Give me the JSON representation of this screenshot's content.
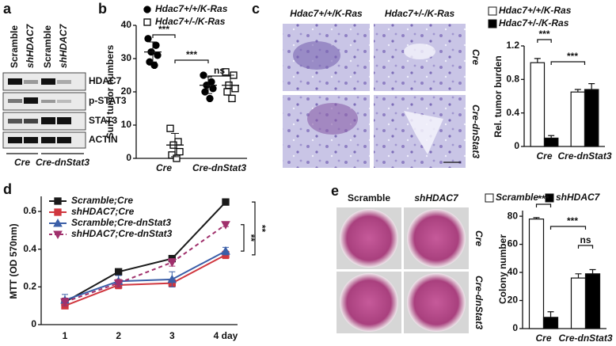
{
  "figure": {
    "panel_labels": [
      "a",
      "b",
      "c",
      "d",
      "e"
    ],
    "blot": {
      "columns": [
        "Scramble",
        "shHDAC7",
        "Scramble",
        "shHDAC7"
      ],
      "rows": [
        "HDAC7",
        "p-STAT3",
        "STAT3",
        "ACTIN"
      ],
      "groups": [
        "Cre",
        "Cre-dnStat3"
      ]
    },
    "histology": {
      "columns": [
        "Hdac7+/+/K-Ras",
        "Hdac7+/-/K-Ras"
      ],
      "rows": [
        "Cre",
        "Cre-dnStat3"
      ]
    },
    "plates": {
      "columns": [
        "Scramble",
        "shHDAC7"
      ],
      "rows": [
        "Cre",
        "Cre-dnStat3"
      ]
    }
  },
  "chart_data": [
    {
      "type": "strip",
      "ylabel": "Surf. tumor numbers",
      "categories": [
        "Cre",
        "Cre-dnStat3"
      ],
      "ylim": [
        0,
        40
      ],
      "yticks": [
        0,
        10,
        20,
        30,
        40
      ],
      "series": [
        {
          "name": "Hdac7+/+/K-Ras",
          "color": "#000000",
          "filled": true,
          "marker": "circle",
          "values": [
            [
              36,
              34,
              32,
              31,
              29,
              28
            ],
            [
              25,
              23,
              22,
              21,
              20,
              18
            ]
          ],
          "means": [
            32,
            22
          ],
          "errors": [
            3,
            2.5
          ]
        },
        {
          "name": "Hdac7+/-/K-Ras",
          "color": "#000000",
          "filled": false,
          "marker": "square",
          "values": [
            [
              9,
              5,
              4,
              2,
              1,
              0
            ],
            [
              26,
              25,
              22,
              21,
              20,
              18
            ]
          ],
          "means": [
            4,
            22
          ],
          "errors": [
            3.5,
            3
          ]
        }
      ],
      "annotations": [
        "***",
        "***",
        "ns"
      ]
    },
    {
      "type": "bar",
      "ylabel": "Rel. tumor burden",
      "categories": [
        "Cre",
        "Cre-dnStat3"
      ],
      "ylim": [
        0,
        1.2
      ],
      "yticks": [
        0,
        0.4,
        0.8,
        1.2
      ],
      "series": [
        {
          "name": "Hdac7+/+/K-Ras",
          "color": "#ffffff",
          "values": [
            1.0,
            0.65
          ],
          "errors": [
            0.05,
            0.03
          ]
        },
        {
          "name": "Hdac7+/-/K-Ras",
          "color": "#000000",
          "values": [
            0.1,
            0.68
          ],
          "errors": [
            0.03,
            0.07
          ]
        }
      ],
      "annotations": [
        "***",
        "***"
      ]
    },
    {
      "type": "line",
      "ylabel": "MTT (OD 570nm)",
      "categories": [
        "1",
        "2",
        "3",
        "4 day"
      ],
      "ylim": [
        0,
        0.68
      ],
      "yticks": [
        0,
        0.2,
        0.4,
        0.6
      ],
      "series": [
        {
          "name": "Scramble;Cre",
          "color": "#1a1a1a",
          "marker": "square",
          "dash": false,
          "values": [
            0.12,
            0.28,
            0.35,
            0.65
          ],
          "errors": [
            0.02,
            0.01,
            0.01,
            0.01
          ]
        },
        {
          "name": "shHDAC7;Cre",
          "color": "#d0373f",
          "marker": "square",
          "dash": false,
          "values": [
            0.1,
            0.21,
            0.22,
            0.37
          ],
          "errors": [
            0.01,
            0.02,
            0.02,
            0.02
          ]
        },
        {
          "name": "Scramble;Cre-dnStat3",
          "color": "#3b5fa8",
          "marker": "triangle",
          "dash": false,
          "values": [
            0.13,
            0.23,
            0.24,
            0.39
          ],
          "errors": [
            0.03,
            0.03,
            0.04,
            0.02
          ]
        },
        {
          "name": "shHDAC7;Cre-dnStat3",
          "color": "#a0306c",
          "marker": "triangle-down",
          "dash": true,
          "values": [
            0.12,
            0.22,
            0.33,
            0.53
          ],
          "errors": [
            0.02,
            0.02,
            0.02,
            0.01
          ]
        }
      ],
      "annotations": [
        "**",
        "**"
      ]
    },
    {
      "type": "bar",
      "ylabel": "Colony number",
      "categories": [
        "Cre",
        "Cre-dnStat3"
      ],
      "ylim": [
        0,
        84
      ],
      "yticks": [
        0,
        20,
        40,
        60,
        80
      ],
      "series": [
        {
          "name": "Scramble",
          "color": "#ffffff",
          "values": [
            78,
            36
          ],
          "errors": [
            1,
            3
          ]
        },
        {
          "name": "shHDAC7",
          "color": "#000000",
          "values": [
            8,
            39
          ],
          "errors": [
            4,
            3
          ]
        }
      ],
      "annotations": [
        "***",
        "***",
        "ns"
      ]
    }
  ]
}
